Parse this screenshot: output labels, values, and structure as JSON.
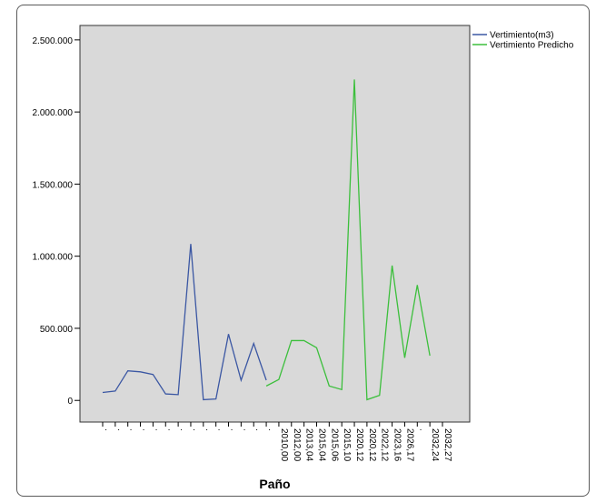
{
  "chart_data": {
    "type": "line",
    "categories": [
      ".",
      ".",
      ".",
      ".",
      ".",
      ".",
      ".",
      ".",
      ".",
      ".",
      ".",
      ".",
      ".",
      ".",
      "2010,00",
      "2012,00",
      "2013,04",
      "2015,04",
      "2015,06",
      "2015,10",
      "2020,12",
      "2020,12",
      "2022,12",
      "2023,16",
      "2026,17",
      ".",
      "2032,24",
      "2032,27"
    ],
    "series": [
      {
        "name": "Vertimiento(m3)",
        "color": "#3b57a3",
        "values": [
          55000,
          65000,
          205000,
          198000,
          180000,
          45000,
          40000,
          1085000,
          5000,
          10000,
          460000,
          140000,
          395000,
          140000,
          null,
          null,
          null,
          null,
          null,
          null,
          null,
          null,
          null,
          null,
          null,
          null,
          null,
          null
        ]
      },
      {
        "name": "Vertimiento Predicho",
        "color": "#3cbf3c",
        "values": [
          null,
          null,
          null,
          null,
          null,
          null,
          null,
          null,
          null,
          null,
          null,
          null,
          null,
          100000,
          145000,
          415000,
          415000,
          365000,
          100000,
          75000,
          2225000,
          5000,
          35000,
          935000,
          295000,
          800000,
          310000,
          null
        ]
      }
    ],
    "yticks": [
      "0",
      "500.000",
      "1.000.000",
      "1.500.000",
      "2.000.000",
      "2.500.000"
    ],
    "ytick_values": [
      0,
      500000,
      1000000,
      1500000,
      2000000,
      2500000
    ],
    "ylim": [
      -150000,
      2600000
    ],
    "xlabel": "Paño",
    "ylabel": "",
    "legend": "top-right",
    "plot_background": "#d9d9d9"
  }
}
